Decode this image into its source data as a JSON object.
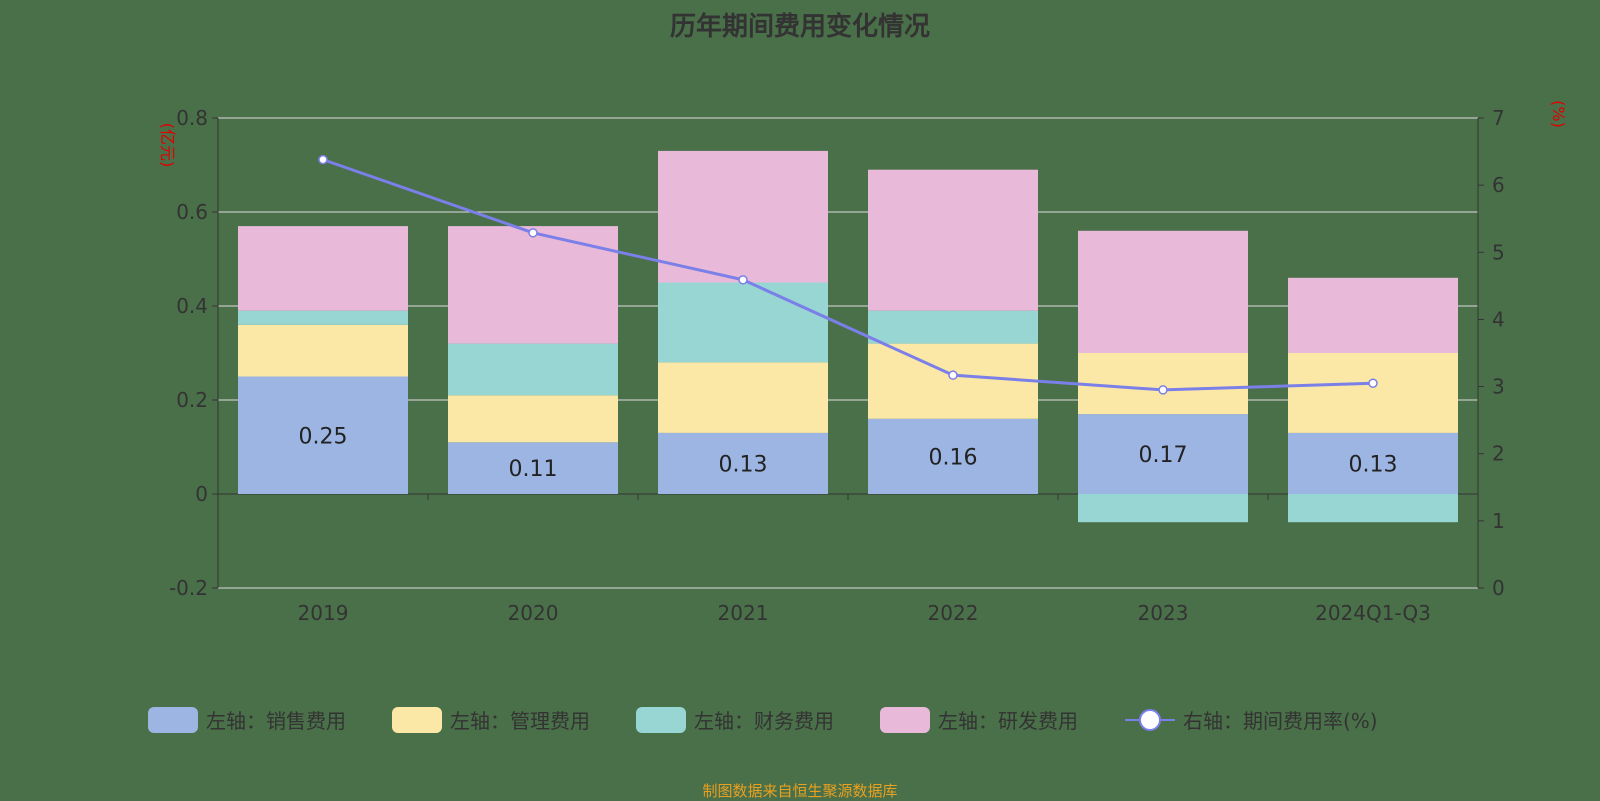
{
  "title": "历年期间费用变化情况",
  "source": "制图数据来自恒生聚源数据库",
  "chart_data": {
    "type": "bar",
    "stacked": true,
    "categories": [
      "2019",
      "2020",
      "2021",
      "2022",
      "2023",
      "2024Q1-Q3"
    ],
    "left_axis": {
      "unit": "(亿元)",
      "ylim": [
        -0.2,
        0.8
      ],
      "ticks": [
        "-0.2",
        "0",
        "0.2",
        "0.4",
        "0.6",
        "0.8"
      ]
    },
    "right_axis": {
      "unit": "(%)",
      "ylim": [
        0,
        7
      ],
      "ticks": [
        "0",
        "1",
        "2",
        "3",
        "4",
        "5",
        "6",
        "7"
      ]
    },
    "grid": true,
    "legend_placement": "bottom",
    "series": [
      {
        "name": "左轴：销售费用",
        "color": "#9db5e2",
        "values": [
          0.25,
          0.11,
          0.13,
          0.16,
          0.17,
          0.13
        ],
        "labels": [
          "0.25",
          "0.11",
          "0.13",
          "0.16",
          "0.17",
          "0.13"
        ]
      },
      {
        "name": "左轴：管理费用",
        "color": "#fbe8a6",
        "values": [
          0.11,
          0.1,
          0.15,
          0.16,
          0.13,
          0.17
        ]
      },
      {
        "name": "左轴：财务费用",
        "color": "#98d6d4",
        "values": [
          0.03,
          0.11,
          0.17,
          0.07,
          -0.06,
          -0.06
        ]
      },
      {
        "name": "左轴：研发费用",
        "color": "#e8b9d9",
        "values": [
          0.18,
          0.25,
          0.28,
          0.3,
          0.26,
          0.16
        ]
      },
      {
        "name": "右轴：期间费用率(%)",
        "type": "line",
        "axis": "right",
        "color": "#7b7fe8",
        "values": [
          6.38,
          5.29,
          4.59,
          3.17,
          2.95,
          3.05
        ]
      }
    ]
  }
}
